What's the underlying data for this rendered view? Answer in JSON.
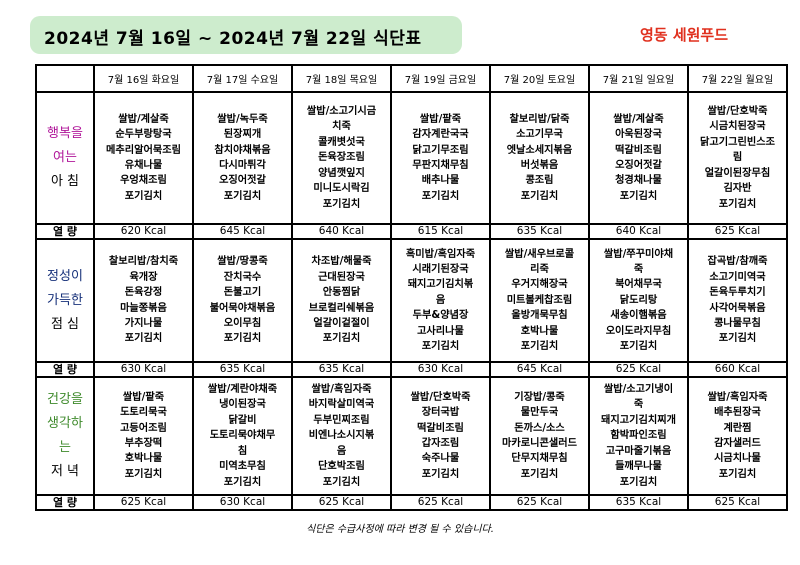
{
  "title": "2024년 7월 16일 ~ 2024년 7월 22일 식단표",
  "company": "영동 세원푸드",
  "days": [
    "7월 16일 화요일",
    "7월 17일 수요일",
    "7월 18일 목요일",
    "7월 19일 금요일",
    "7월 20일 토요일",
    "7월 21일 일요일",
    "7월 22일 월요일"
  ],
  "kcal_label": "열 량",
  "meals": [
    {
      "label": [
        "행복을",
        "여는",
        "아 침"
      ],
      "menus": [
        [
          "쌀밥/계살죽",
          "순두부랑탕국",
          "메추리알어묵조림",
          "유채나물",
          "우엉채조림",
          "포기김치"
        ],
        [
          "쌀밥/녹두죽",
          "된장찌개",
          "참치야채볶음",
          "다시마튀각",
          "오징어젓갈",
          "포기김치"
        ],
        [
          "쌀밥/소고기시금",
          "치죽",
          "콜캐볏섯국",
          "돈육장조림",
          "양념깻잎지",
          "미니도시락김",
          "포기김치"
        ],
        [
          "쌀밥/팥죽",
          "감자계란국국",
          "닭고기무조림",
          "무판지채무침",
          "배추나물",
          "포기김치"
        ],
        [
          "찰보리밥/닭죽",
          "소고기무국",
          "엣날소세지볶음",
          "버섯볶음",
          "콩조림",
          "포기김치"
        ],
        [
          "쌀밥/계살죽",
          "아욱된장국",
          "떡갈비조림",
          "오징어젓갈",
          "청경채나물",
          "포기김치"
        ],
        [
          "쌀밥/단호박죽",
          "시금치된장국",
          "닭고기그린빈스조",
          "림",
          "얼갈이된장무침",
          "김자반",
          "포기김치"
        ]
      ],
      "kcal": [
        "620 Kcal",
        "645 Kcal",
        "640 Kcal",
        "615 Kcal",
        "635 Kcal",
        "640 Kcal",
        "625 Kcal"
      ]
    },
    {
      "label": [
        "정성이",
        "가득한",
        "점 심"
      ],
      "menus": [
        [
          "찰보리밥/참치죽",
          "육개장",
          "돈육강정",
          "마늘쫑볶음",
          "가지나물",
          "포기김치"
        ],
        [
          "쌀밥/땅콩죽",
          "잔치국수",
          "돈불고기",
          "불어묵야채볶음",
          "오이무침",
          "포기김치"
        ],
        [
          "차조밥/해물죽",
          "근대된장국",
          "안동찜닭",
          "브로컬리쉐볶음",
          "얼갈이겉절이",
          "포기김치"
        ],
        [
          "흑미밥/흑임자죽",
          "시래기된장국",
          "돼지고기김치볶",
          "음",
          "두부&양념장",
          "고사리나물",
          "포기김치"
        ],
        [
          "쌀밥/새우브로콜",
          "리죽",
          "우거지해장국",
          "미트볼케찹조림",
          "올방개묵무침",
          "호박나물",
          "포기김치"
        ],
        [
          "쌀밥/쭈꾸미야채",
          "죽",
          "북어채무국",
          "닭도리탕",
          "새송이햄볶음",
          "오이도라지무침",
          "포기김치"
        ],
        [
          "잡곡밥/참깨죽",
          "소고기미역국",
          "돈육두루치기",
          "사각어묵볶음",
          "콩나물무침",
          "포기김치"
        ]
      ],
      "kcal": [
        "630 Kcal",
        "635 Kcal",
        "635 Kcal",
        "630 Kcal",
        "645 Kcal",
        "625 Kcal",
        "660 Kcal"
      ]
    },
    {
      "label": [
        "건강을",
        "생각하",
        "는",
        "저 녁"
      ],
      "menus": [
        [
          "쌀밥/팥죽",
          "도토리묵국",
          "고등어조림",
          "부추장떡",
          "호박나물",
          "포기김치"
        ],
        [
          "쌀밥/계란야채죽",
          "냉이된장국",
          "닭갈비",
          "도토리묵야채무",
          "침",
          "미역초무침",
          "포기김치"
        ],
        [
          "쌀밥/흑임자죽",
          "바지락살미역국",
          "두부민찌조림",
          "비엔나소시지볶",
          "음",
          "단호박조림",
          "포기김치"
        ],
        [
          "쌀밥/단호박죽",
          "장터국밥",
          "떡갈비조림",
          "갑자조림",
          "숙주나물",
          "포기김치"
        ],
        [
          "기장밥/콩죽",
          "물만두국",
          "돈까스/소스",
          "마카로니콘샐러드",
          "단무지채무침",
          "포기김치"
        ],
        [
          "쌀밥/소고기냉이",
          "죽",
          "돼지고기김치찌개",
          "함박파인조림",
          "고구마줄기볶음",
          "들깨무나물",
          "포기김치"
        ],
        [
          "쌀밥/흑임자죽",
          "배추된장국",
          "계란찜",
          "감자샐러드",
          "시금치나물",
          "포기김치"
        ]
      ],
      "kcal": [
        "625 Kcal",
        "630 Kcal",
        "625 Kcal",
        "625 Kcal",
        "625 Kcal",
        "635 Kcal",
        "625 Kcal"
      ]
    }
  ],
  "footer": "식단은 수급사정에 따라 변경 될 수 있습니다."
}
